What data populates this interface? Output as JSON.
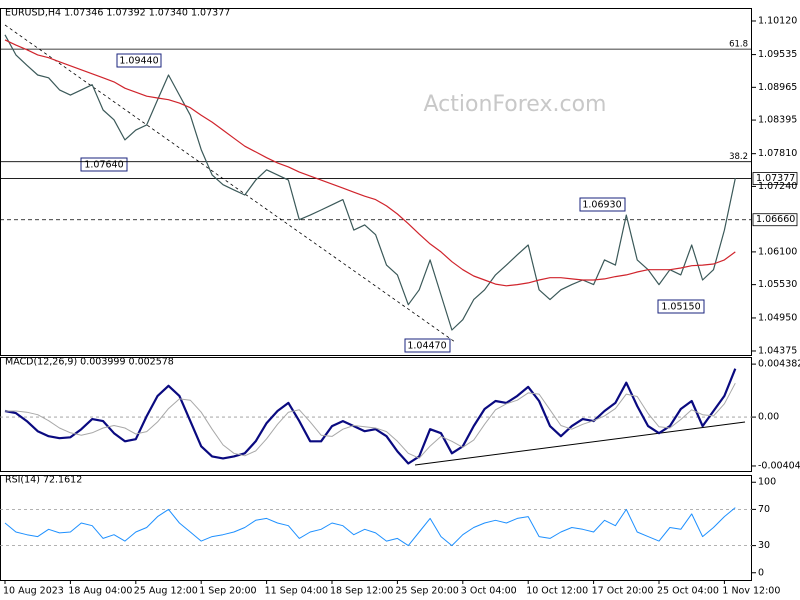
{
  "chart_data": [
    {
      "type": "line",
      "title": "EURUSD,H4  1.07346 1.07392 1.07340 1.07377",
      "watermark": "ActionForex.com",
      "ylim": [
        1.04305,
        1.10346
      ],
      "yticks": [
        {
          "value": 1.1012,
          "label": "1.10120"
        },
        1.09535,
        1.08965,
        1.08395,
        {
          "value": 1.0781,
          "label": "1.07810"
        },
        {
          "value": 1.0724,
          "label": "1.07240"
        },
        {
          "value": 1.061,
          "label": "1.06100"
        },
        {
          "value": 1.0553,
          "label": "1.05530"
        },
        {
          "value": 1.0495,
          "label": "1.04950"
        },
        1.04375
      ],
      "levels": [
        {
          "value": 1.07377,
          "label": "1.07377",
          "style": "solid"
        },
        {
          "value": 1.0666,
          "label": "1.06660",
          "style": "dashed"
        }
      ],
      "fib_levels": [
        {
          "value": 1.0963,
          "label": "61.8"
        },
        {
          "value": 1.0767,
          "label": "38.2"
        }
      ],
      "callouts": [
        "1.09440",
        "1.07640",
        "1.06930",
        "1.04470",
        "1.05150"
      ],
      "series": [
        {
          "color": "#3b5959",
          "width": 1.2,
          "values": [
            1.0988,
            1.0953,
            1.0935,
            1.0918,
            1.0913,
            1.0892,
            1.0883,
            1.0892,
            1.0901,
            1.0857,
            1.084,
            1.0805,
            1.0822,
            1.0831,
            1.0875,
            1.0918,
            1.0883,
            1.0848,
            1.0788,
            1.0744,
            1.0727,
            1.0718,
            1.0709,
            1.0735,
            1.0753,
            1.0744,
            1.0735,
            1.0666,
            1.0674,
            1.0683,
            1.0692,
            1.0701,
            1.0648,
            1.0657,
            1.064,
            1.0587,
            1.057,
            1.0518,
            1.0544,
            1.0596,
            1.0535,
            1.0474,
            1.0492,
            1.0527,
            1.0544,
            1.057,
            1.0587,
            1.0605,
            1.0622,
            1.0544,
            1.0527,
            1.0544,
            1.0553,
            1.0561,
            1.0553,
            1.0596,
            1.0587,
            1.0674,
            1.0596,
            1.0579,
            1.0553,
            1.0579,
            1.057,
            1.0622,
            1.0561,
            1.0579,
            1.0648,
            1.0738
          ]
        },
        {
          "color": "#d0242c",
          "width": 1.2,
          "values": [
            1.0979,
            1.097,
            1.0962,
            1.0953,
            1.0948,
            1.0941,
            1.0934,
            1.0927,
            1.092,
            1.0913,
            1.0906,
            1.0895,
            1.0888,
            1.0881,
            1.0878,
            1.0875,
            1.0869,
            1.0861,
            1.0848,
            1.0836,
            1.0822,
            1.0808,
            1.0794,
            1.0784,
            1.0774,
            1.0765,
            1.0758,
            1.0749,
            1.0742,
            1.0735,
            1.0728,
            1.0721,
            1.0714,
            1.0707,
            1.0701,
            1.069,
            1.0676,
            1.0659,
            1.0641,
            1.0624,
            1.061,
            1.0593,
            1.0579,
            1.0568,
            1.0561,
            1.0554,
            1.0551,
            1.0553,
            1.0556,
            1.0561,
            1.0565,
            1.0565,
            1.0563,
            1.0561,
            1.0561,
            1.0563,
            1.0567,
            1.057,
            1.0575,
            1.0579,
            1.0579,
            1.0579,
            1.0582,
            1.0586,
            1.0587,
            1.0589,
            1.0596,
            1.061
          ]
        }
      ]
    },
    {
      "type": "line",
      "title": "MACD(12,26,9) 0.003999 0.002578",
      "ylim": [
        -0.00446,
        0.00497
      ],
      "yticks": [
        0.004382,
        {
          "value": 0,
          "label": "0.00"
        },
        -0.004044
      ],
      "levels": [
        0
      ],
      "series": [
        {
          "color": "#0a0a80",
          "width": 2.2,
          "values": [
            0.0005,
            0.00033,
            -0.00033,
            -0.00117,
            -0.00158,
            -0.00175,
            -0.00167,
            -0.001,
            -0.00017,
            -0.00033,
            -0.00133,
            -0.002,
            -0.00183,
            8e-05,
            0.00175,
            0.00259,
            0.00175,
            -0.00033,
            -0.00242,
            -0.00325,
            -0.00342,
            -0.00325,
            -0.003,
            -0.002,
            -0.0005,
            0.0005,
            0.00117,
            -0.00033,
            -0.002,
            -0.002,
            -0.00075,
            -0.00033,
            -0.00075,
            -0.00117,
            -0.001,
            -0.00158,
            -0.00284,
            -0.00384,
            -0.00325,
            -0.001,
            -0.00133,
            -0.003,
            -0.00242,
            -0.00075,
            0.00067,
            0.00133,
            0.00117,
            0.00175,
            0.0025,
            0.00133,
            -0.00075,
            -0.00158,
            -0.00075,
            -0.00017,
            -0.00033,
            0.0005,
            0.00117,
            0.00284,
            0.00092,
            -0.00075,
            -0.00133,
            -0.00075,
            0.00067,
            0.00133,
            -0.00075,
            0.0005,
            0.00175,
            0.004
          ]
        },
        {
          "color": "#a8a8a8",
          "width": 1,
          "values": [
            0.0005,
            0.0005,
            0.0004,
            0.0002,
            -0.0003,
            -0.0009,
            -0.0013,
            -0.0015,
            -0.0013,
            -0.0009,
            -0.0007,
            -0.0009,
            -0.0014,
            -0.0012,
            -0.0004,
            0.0007,
            0.0015,
            0.0014,
            0.0004,
            -0.001,
            -0.0023,
            -0.003,
            -0.0032,
            -0.0028,
            -0.0018,
            -0.0006,
            0.0004,
            0.0006,
            -0.0004,
            -0.0015,
            -0.0016,
            -0.001,
            -0.0007,
            -0.0008,
            -0.0009,
            -0.0012,
            -0.002,
            -0.003,
            -0.0034,
            -0.0024,
            -0.0016,
            -0.002,
            -0.0025,
            -0.0019,
            -0.0006,
            0.0006,
            0.0011,
            0.0014,
            0.002,
            0.0019,
            0.0006,
            -0.0007,
            -0.001,
            -0.0006,
            -0.0003,
            0.0001,
            0.0007,
            0.0019,
            0.0017,
            0.0003,
            -0.0008,
            -0.0009,
            -0.0002,
            0.0006,
            0.0002,
            0.0001,
            0.0011,
            0.0028
          ]
        }
      ]
    },
    {
      "type": "line",
      "title": "RSI(14) 72.1612",
      "ylim": [
        -8,
        108
      ],
      "yticks": [
        0,
        30,
        70,
        100
      ],
      "levels": [
        70,
        30
      ],
      "categories": [
        "10 Aug 2023",
        null,
        null,
        null,
        null,
        null,
        "18 Aug 04:00",
        null,
        null,
        null,
        null,
        null,
        "25 Aug 12:00",
        null,
        null,
        null,
        null,
        null,
        "1 Sep 20:00",
        null,
        null,
        null,
        null,
        null,
        "11 Sep 04:00",
        null,
        null,
        null,
        null,
        null,
        "18 Sep 12:00",
        null,
        null,
        null,
        null,
        null,
        "25 Sep 20:00",
        null,
        null,
        null,
        null,
        null,
        "3 Oct 04:00",
        null,
        null,
        null,
        null,
        null,
        "10 Oct 12:00",
        null,
        null,
        null,
        null,
        null,
        "17 Oct 20:00",
        null,
        null,
        null,
        null,
        null,
        "25 Oct 04:00",
        null,
        null,
        null,
        null,
        null,
        "1 Nov 12:00",
        null
      ],
      "series": [
        {
          "color": "#1e90ff",
          "width": 1,
          "values": [
            55,
            45,
            42,
            40,
            48,
            44,
            45,
            55,
            52,
            38,
            42,
            35,
            45,
            50,
            62,
            70,
            55,
            45,
            35,
            40,
            42,
            45,
            50,
            58,
            60,
            55,
            52,
            38,
            45,
            48,
            55,
            52,
            42,
            48,
            44,
            35,
            38,
            30,
            45,
            60,
            40,
            30,
            42,
            50,
            55,
            58,
            55,
            60,
            62,
            40,
            38,
            45,
            50,
            48,
            45,
            58,
            52,
            70,
            45,
            40,
            35,
            50,
            48,
            65,
            40,
            50,
            62,
            72
          ]
        }
      ]
    }
  ]
}
